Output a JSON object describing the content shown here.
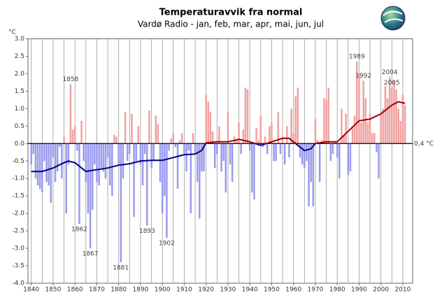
{
  "chart_data": {
    "type": "bar",
    "title": "Temperaturavvik fra normal",
    "subtitle": "Vardø Radio - jan, feb, mar, apr, mai, jun, jul",
    "y_label": "°C",
    "baseline_label": "0,4 °C",
    "positive_color": "#f2a0a0",
    "negative_color": "#9a9aee",
    "smooth_positive_color": "#a00000",
    "smooth_negative_color": "#00007a",
    "grid": true,
    "xlim": [
      1838.5,
      2014.5
    ],
    "ylim": [
      -4.0,
      3.0
    ],
    "xticks": [
      1840,
      1850,
      1860,
      1870,
      1880,
      1890,
      1900,
      1910,
      1920,
      1930,
      1940,
      1950,
      1960,
      1970,
      1980,
      1990,
      2000,
      2010
    ],
    "xminor": [
      1845,
      1855,
      1865,
      1875,
      1885,
      1895,
      1905,
      1915,
      1925,
      1935,
      1945,
      1955,
      1965,
      1975,
      1985,
      1995,
      2005
    ],
    "yticks": [
      {
        "value": 3,
        "label": "3.0"
      },
      2.5,
      {
        "value": 2,
        "label": "2.0"
      },
      1.5,
      {
        "value": 1,
        "label": "1.0"
      },
      0.5,
      {
        "value": 0,
        "label": "0.0"
      },
      -0.5,
      {
        "value": -1,
        "label": "-1.0"
      },
      -1.5,
      {
        "value": -2,
        "label": "-2.0"
      },
      -2.5,
      {
        "value": -3,
        "label": "-3.0"
      },
      -3.5,
      {
        "value": -4,
        "label": "-4.0"
      }
    ],
    "x": [
      1840,
      1841,
      1842,
      1843,
      1844,
      1845,
      1846,
      1847,
      1848,
      1849,
      1850,
      1851,
      1852,
      1853,
      1854,
      1855,
      1856,
      1857,
      1858,
      1859,
      1860,
      1861,
      1862,
      1863,
      1864,
      1865,
      1866,
      1867,
      1868,
      1869,
      1870,
      1871,
      1872,
      1873,
      1874,
      1875,
      1876,
      1877,
      1878,
      1879,
      1880,
      1881,
      1882,
      1883,
      1884,
      1885,
      1886,
      1887,
      1888,
      1889,
      1890,
      1891,
      1892,
      1893,
      1894,
      1895,
      1896,
      1897,
      1898,
      1899,
      1900,
      1901,
      1902,
      1903,
      1904,
      1905,
      1906,
      1907,
      1908,
      1909,
      1910,
      1911,
      1912,
      1913,
      1914,
      1915,
      1916,
      1917,
      1918,
      1919,
      1920,
      1921,
      1922,
      1923,
      1924,
      1925,
      1926,
      1927,
      1928,
      1929,
      1930,
      1931,
      1932,
      1933,
      1934,
      1935,
      1936,
      1937,
      1938,
      1939,
      1940,
      1941,
      1942,
      1943,
      1944,
      1945,
      1946,
      1947,
      1948,
      1949,
      1950,
      1951,
      1952,
      1953,
      1954,
      1955,
      1956,
      1957,
      1958,
      1959,
      1960,
      1961,
      1962,
      1963,
      1964,
      1965,
      1966,
      1967,
      1968,
      1969,
      1970,
      1971,
      1972,
      1973,
      1974,
      1975,
      1976,
      1977,
      1978,
      1979,
      1980,
      1981,
      1982,
      1983,
      1984,
      1985,
      1986,
      1987,
      1988,
      1989,
      1990,
      1991,
      1992,
      1993,
      1994,
      1995,
      1996,
      1997,
      1998,
      1999,
      2000,
      2001,
      2002,
      2003,
      2004,
      2005,
      2006,
      2007,
      2008,
      2009,
      2010,
      2011
    ],
    "values": [
      -0.6,
      -0.3,
      -1.0,
      -1.2,
      -1.3,
      -1.4,
      -0.5,
      -1.1,
      -1.2,
      -1.7,
      -0.4,
      -1.1,
      -0.8,
      -0.1,
      -1.0,
      0.2,
      -2.0,
      -0.6,
      1.7,
      0.4,
      0.5,
      -0.2,
      -2.3,
      0.65,
      -0.5,
      -1.1,
      -2.0,
      -3.0,
      -1.9,
      -0.6,
      -1.1,
      -1.2,
      -0.7,
      -0.8,
      -1.0,
      -0.4,
      -1.2,
      -1.5,
      0.25,
      0.2,
      -0.6,
      -3.4,
      -1.0,
      0.9,
      -0.5,
      -0.3,
      0.85,
      -2.1,
      -0.5,
      0.5,
      -0.6,
      -1.2,
      -0.3,
      -2.35,
      0.95,
      -0.7,
      -0.5,
      0.8,
      0.55,
      -1.1,
      -2.0,
      -1.5,
      -2.7,
      -0.2,
      0.15,
      0.3,
      -0.1,
      -1.3,
      0.1,
      0.3,
      -0.3,
      -0.8,
      -0.2,
      -2.0,
      0.3,
      -0.3,
      -1.1,
      -2.15,
      -0.8,
      -0.8,
      1.4,
      1.2,
      0.9,
      0.35,
      -0.7,
      -0.3,
      0.5,
      -0.8,
      -0.5,
      -1.4,
      0.9,
      -0.6,
      -1.1,
      0.2,
      0.1,
      0.6,
      -0.3,
      0.4,
      1.6,
      1.55,
      -0.2,
      -1.4,
      -1.6,
      0.45,
      0.1,
      0.8,
      -0.1,
      0.2,
      -0.3,
      0.5,
      0.6,
      -0.5,
      -0.5,
      0.9,
      -0.3,
      0.2,
      -0.6,
      0.5,
      -0.4,
      1.0,
      0.3,
      1.35,
      1.6,
      -0.4,
      -0.6,
      -0.7,
      -0.5,
      -1.8,
      -1.1,
      -1.8,
      0.7,
      0.1,
      -1.1,
      0.1,
      1.3,
      1.25,
      1.6,
      -0.5,
      -0.3,
      0.05,
      -0.4,
      -1.0,
      1.0,
      0.25,
      0.85,
      -0.9,
      -0.8,
      0.5,
      0.8,
      2.35,
      2.0,
      0.6,
      1.8,
      1.3,
      0.6,
      0.85,
      0.3,
      0.3,
      -0.25,
      -1.0,
      0.9,
      1.0,
      1.65,
      1.3,
      1.9,
      1.6,
      1.8,
      1.55,
      1.0,
      0.65,
      1.4,
      1.1
    ],
    "annotations": [
      1858,
      1862,
      1867,
      1881,
      1893,
      1902,
      1989,
      1992,
      2004,
      2005
    ],
    "smooth": {
      "x": [
        1840,
        1845,
        1850,
        1855,
        1857,
        1860,
        1865,
        1870,
        1875,
        1880,
        1885,
        1890,
        1895,
        1900,
        1905,
        1910,
        1915,
        1918,
        1920,
        1925,
        1930,
        1935,
        1940,
        1945,
        1950,
        1955,
        1958,
        1962,
        1965,
        1968,
        1970,
        1975,
        1980,
        1985,
        1990,
        1995,
        2000,
        2005,
        2008,
        2011
      ],
      "values": [
        -0.8,
        -0.8,
        -0.7,
        -0.55,
        -0.5,
        -0.55,
        -0.8,
        -0.75,
        -0.7,
        -0.62,
        -0.58,
        -0.5,
        -0.48,
        -0.48,
        -0.4,
        -0.32,
        -0.3,
        -0.2,
        0.02,
        0.05,
        0.05,
        0.12,
        0.05,
        -0.05,
        0.05,
        0.15,
        0.15,
        -0.05,
        -0.2,
        -0.15,
        0.0,
        0.05,
        0.05,
        0.35,
        0.65,
        0.7,
        0.85,
        1.1,
        1.2,
        1.15
      ]
    }
  }
}
